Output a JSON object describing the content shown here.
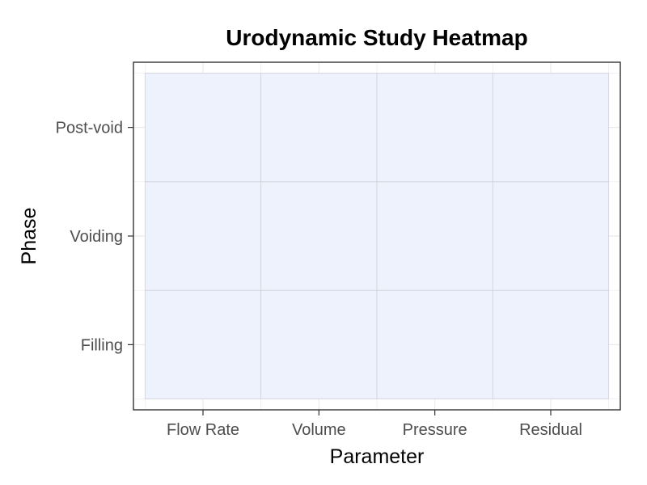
{
  "chart_data": {
    "type": "heatmap",
    "title": "Urodynamic Study Heatmap",
    "xlabel": "Parameter",
    "ylabel": "Phase",
    "x_categories": [
      "Flow Rate",
      "Volume",
      "Pressure",
      "Residual"
    ],
    "y_categories": [
      "Filling",
      "Voiding",
      "Post-void"
    ],
    "cells": [
      {
        "x": "Flow Rate",
        "y": "Filling"
      },
      {
        "x": "Volume",
        "y": "Filling"
      },
      {
        "x": "Pressure",
        "y": "Filling"
      },
      {
        "x": "Residual",
        "y": "Filling"
      },
      {
        "x": "Flow Rate",
        "y": "Voiding"
      },
      {
        "x": "Volume",
        "y": "Voiding"
      },
      {
        "x": "Pressure",
        "y": "Voiding"
      },
      {
        "x": "Residual",
        "y": "Voiding"
      },
      {
        "x": "Flow Rate",
        "y": "Post-void"
      },
      {
        "x": "Volume",
        "y": "Post-void"
      },
      {
        "x": "Pressure",
        "y": "Post-void"
      },
      {
        "x": "Residual",
        "y": "Post-void"
      }
    ],
    "cell_fill": "#eef2fd",
    "cell_border": "#d0d0d8",
    "grid": true,
    "legend": "none"
  }
}
